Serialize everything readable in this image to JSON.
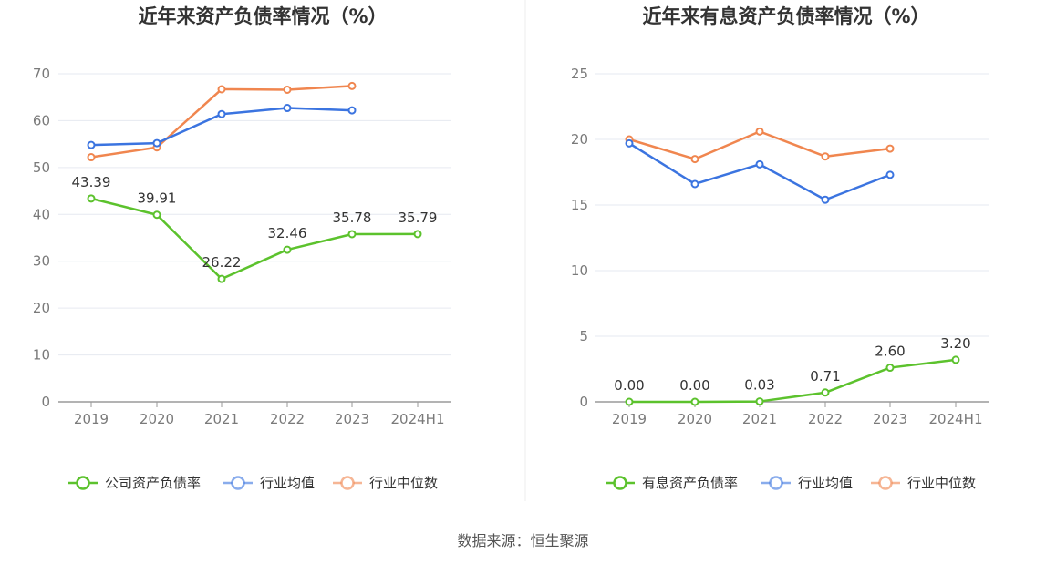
{
  "source": "数据来源：恒生聚源",
  "colors": {
    "company": "#5cc22d",
    "industry_avg": "#3b74e0",
    "industry_median": "#f0864f",
    "grid": "#e6e9f0",
    "axis": "#9a9a9a"
  },
  "chart_data": [
    {
      "type": "line",
      "title": "近年来资产负债率情况（%）",
      "categories": [
        "2019",
        "2020",
        "2021",
        "2022",
        "2023",
        "2024H1"
      ],
      "ylim": [
        0,
        70
      ],
      "yticks": [
        0,
        10,
        20,
        30,
        40,
        50,
        60,
        70
      ],
      "grid": true,
      "legend_position": "bottom",
      "series": [
        {
          "name": "公司资产负债率",
          "key": "company",
          "values": [
            43.39,
            39.91,
            26.22,
            32.46,
            35.78,
            35.79
          ],
          "data_labels": [
            "43.39",
            "39.91",
            "26.22",
            "32.46",
            "35.78",
            "35.79"
          ]
        },
        {
          "name": "行业均值",
          "key": "industry_avg",
          "values": [
            54.8,
            55.2,
            61.4,
            62.7,
            62.2,
            null
          ]
        },
        {
          "name": "行业中位数",
          "key": "industry_median",
          "values": [
            52.2,
            54.3,
            66.7,
            66.6,
            67.4,
            null
          ]
        }
      ]
    },
    {
      "type": "line",
      "title": "近年来有息资产负债率情况（%）",
      "categories": [
        "2019",
        "2020",
        "2021",
        "2022",
        "2023",
        "2024H1"
      ],
      "ylim": [
        0,
        25
      ],
      "yticks": [
        0,
        5,
        10,
        15,
        20,
        25
      ],
      "grid": true,
      "legend_position": "bottom",
      "series": [
        {
          "name": "有息资产负债率",
          "key": "company",
          "values": [
            0.0,
            0.0,
            0.03,
            0.71,
            2.6,
            3.2
          ],
          "data_labels": [
            "0.00",
            "0.00",
            "0.03",
            "0.71",
            "2.60",
            "3.20"
          ]
        },
        {
          "name": "行业均值",
          "key": "industry_avg",
          "values": [
            19.7,
            16.6,
            18.1,
            15.4,
            17.3,
            null
          ]
        },
        {
          "name": "行业中位数",
          "key": "industry_median",
          "values": [
            20.0,
            18.5,
            20.6,
            18.7,
            19.3,
            null
          ]
        }
      ]
    }
  ]
}
